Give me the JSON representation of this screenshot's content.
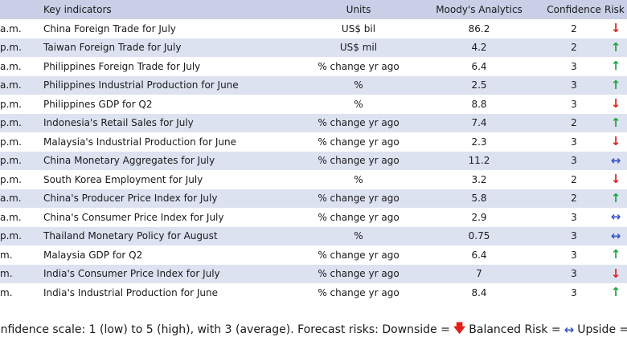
{
  "colors": {
    "header_bg": "#c8cfe6",
    "alt_row_bg": "#dde2f1",
    "down": "#e0201b",
    "up": "#1aa83a",
    "balanced": "#3a56c8"
  },
  "header": {
    "indicator": "Key indicators",
    "units": "Units",
    "forecast": "Moody's Analytics",
    "confidence": "Confidence",
    "risk": "Risk"
  },
  "rows": [
    {
      "time": "a.m.",
      "indicator": "China Foreign Trade for July",
      "units": "US$ bil",
      "value": "86.2",
      "confidence": "2",
      "risk": "down"
    },
    {
      "time": "p.m.",
      "indicator": "Taiwan Foreign Trade for July",
      "units": "US$ mil",
      "value": "4.2",
      "confidence": "2",
      "risk": "up"
    },
    {
      "time": "a.m.",
      "indicator": "Philippines Foreign Trade for July",
      "units": "% change yr ago",
      "value": "6.4",
      "confidence": "3",
      "risk": "up"
    },
    {
      "time": "a.m.",
      "indicator": "Philippines Industrial Production for June",
      "units": "%",
      "value": "2.5",
      "confidence": "3",
      "risk": "up"
    },
    {
      "time": "p.m.",
      "indicator": "Philippines GDP for Q2",
      "units": "%",
      "value": "8.8",
      "confidence": "3",
      "risk": "down"
    },
    {
      "time": "p.m.",
      "indicator": "Indonesia's Retail Sales for July",
      "units": "% change yr ago",
      "value": "7.4",
      "confidence": "2",
      "risk": "up"
    },
    {
      "time": "p.m.",
      "indicator": "Malaysia's Industrial Production for June",
      "units": "% change yr ago",
      "value": "2.3",
      "confidence": "3",
      "risk": "down"
    },
    {
      "time": "p.m.",
      "indicator": "China Monetary Aggregates for July",
      "units": "% change yr ago",
      "value": "11.2",
      "confidence": "3",
      "risk": "balanced"
    },
    {
      "time": "p.m.",
      "indicator": "South Korea Employment for July",
      "units": "%",
      "value": "3.2",
      "confidence": "2",
      "risk": "down"
    },
    {
      "time": "a.m.",
      "indicator": "China's Producer Price Index for July",
      "units": "% change yr ago",
      "value": "5.8",
      "confidence": "2",
      "risk": "up"
    },
    {
      "time": "a.m.",
      "indicator": "China's Consumer Price Index for July",
      "units": "% change yr ago",
      "value": "2.9",
      "confidence": "3",
      "risk": "balanced"
    },
    {
      "time": "p.m.",
      "indicator": "Thailand Monetary Policy for August",
      "units": "%",
      "value": "0.75",
      "confidence": "3",
      "risk": "balanced"
    },
    {
      "time": "m.",
      "indicator": "Malaysia GDP for Q2",
      "units": "% change yr ago",
      "value": "6.4",
      "confidence": "3",
      "risk": "up"
    },
    {
      "time": "m.",
      "indicator": "India's Consumer Price Index for July",
      "units": "% change yr ago",
      "value": "7",
      "confidence": "3",
      "risk": "down"
    },
    {
      "time": "m.",
      "indicator": "India's Industrial Production for June",
      "units": "% change yr ago",
      "value": "8.4",
      "confidence": "3",
      "risk": "up"
    }
  ],
  "footer": {
    "scale_text": "onfidence scale: 1 (low) to 5 (high), with 3 (average). Forecast risks: Downside =",
    "balanced_text": "Balanced Risk =",
    "upside_text": "Upside ="
  },
  "icons": {
    "down": "down-arrow-icon",
    "up": "up-arrow-icon",
    "balanced": "left-right-arrow-icon"
  }
}
